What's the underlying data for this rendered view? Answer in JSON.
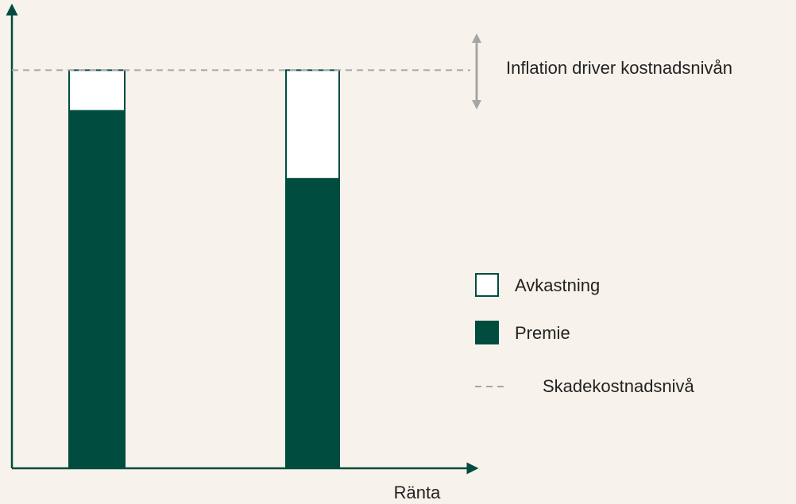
{
  "chart_data": {
    "type": "stacked_bar",
    "x_label": "Ränta",
    "annotation": "Inflation driver kostnadsnivån",
    "categories": [
      null,
      null
    ],
    "series": [
      {
        "name": "Premie",
        "color": "#004c3f",
        "values": [
          79,
          64
        ]
      },
      {
        "name": "Avkastning",
        "color": "#ffffff",
        "values": [
          9,
          24
        ]
      }
    ],
    "reference_line": {
      "name": "Skadekostnadsnivå",
      "value": 88,
      "color": "#a6a6a6"
    },
    "ylim": [
      0,
      100
    ]
  }
}
